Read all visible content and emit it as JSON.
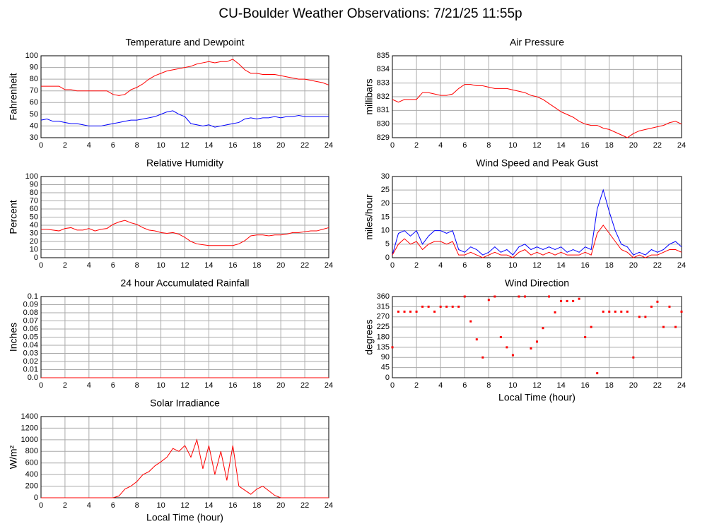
{
  "title": "CU-Boulder Weather Observations: 7/21/25 11:55p",
  "chart_data": [
    {
      "type": "line",
      "title": "Temperature and Dewpoint",
      "ylabel": "Fahrenheit",
      "x": [
        0,
        0.5,
        1,
        1.5,
        2,
        2.5,
        3,
        3.5,
        4,
        4.5,
        5,
        5.5,
        6,
        6.5,
        7,
        7.5,
        8,
        8.5,
        9,
        9.5,
        10,
        10.5,
        11,
        11.5,
        12,
        12.5,
        13,
        13.5,
        14,
        14.5,
        15,
        15.5,
        16,
        16.5,
        17,
        17.5,
        18,
        18.5,
        19,
        19.5,
        20,
        20.5,
        21,
        21.5,
        22,
        22.5,
        23,
        23.5,
        24
      ],
      "series": [
        {
          "color": "#ff0000",
          "values": [
            74,
            74,
            74,
            74,
            71,
            71,
            70,
            70,
            70,
            70,
            70,
            70,
            67,
            66,
            67,
            71,
            73,
            76,
            80,
            83,
            85,
            87,
            88,
            89,
            90,
            91,
            93,
            94,
            95,
            94,
            95,
            95,
            97,
            93,
            88,
            85,
            85,
            84,
            84,
            84,
            83,
            82,
            81,
            80,
            80,
            79,
            78,
            77,
            75
          ]
        },
        {
          "color": "#0000ff",
          "values": [
            45,
            46,
            44,
            44,
            43,
            42,
            42,
            41,
            40,
            40,
            40,
            41,
            42,
            43,
            44,
            45,
            45,
            46,
            47,
            48,
            50,
            52,
            53,
            50,
            48,
            42,
            41,
            40,
            41,
            39,
            40,
            41,
            42,
            43,
            46,
            47,
            46,
            47,
            47,
            48,
            47,
            48,
            48,
            49,
            48,
            48,
            48,
            48,
            48
          ]
        }
      ],
      "xlim": [
        0,
        24
      ],
      "xticks": [
        0,
        2,
        4,
        6,
        8,
        10,
        12,
        14,
        16,
        18,
        20,
        22,
        24
      ],
      "ylim": [
        30,
        100
      ],
      "yticks": [
        30,
        40,
        50,
        60,
        70,
        80,
        90,
        100
      ],
      "grid": true
    },
    {
      "type": "line",
      "title": "Air Pressure",
      "ylabel": "millibars",
      "x": [
        0,
        0.5,
        1,
        1.5,
        2,
        2.5,
        3,
        3.5,
        4,
        4.5,
        5,
        5.5,
        6,
        6.5,
        7,
        7.5,
        8,
        8.5,
        9,
        9.5,
        10,
        10.5,
        11,
        11.5,
        12,
        12.5,
        13,
        13.5,
        14,
        14.5,
        15,
        15.5,
        16,
        16.5,
        17,
        17.5,
        18,
        18.5,
        19,
        19.5,
        20,
        20.5,
        21,
        21.5,
        22,
        22.5,
        23,
        23.5,
        24
      ],
      "series": [
        {
          "color": "#ff0000",
          "values": [
            831.8,
            831.6,
            831.8,
            831.8,
            831.8,
            832.3,
            832.3,
            832.2,
            832.1,
            832.1,
            832.2,
            832.6,
            832.9,
            832.9,
            832.8,
            832.8,
            832.7,
            832.6,
            832.6,
            832.6,
            832.5,
            832.4,
            832.3,
            832.1,
            832.0,
            831.8,
            831.5,
            831.2,
            830.9,
            830.7,
            830.5,
            830.2,
            830.0,
            829.9,
            829.9,
            829.7,
            829.6,
            829.4,
            829.2,
            829.0,
            829.3,
            829.5,
            829.6,
            829.7,
            829.8,
            829.9,
            830.1,
            830.2,
            830.0
          ]
        }
      ],
      "xlim": [
        0,
        24
      ],
      "xticks": [
        0,
        2,
        4,
        6,
        8,
        10,
        12,
        14,
        16,
        18,
        20,
        22,
        24
      ],
      "ylim": [
        829,
        835
      ],
      "yticks": [
        829,
        830,
        831,
        832,
        833,
        834,
        835
      ],
      "grid": true
    },
    {
      "type": "line",
      "title": "Relative Humidity",
      "ylabel": "Percent",
      "x": [
        0,
        0.5,
        1,
        1.5,
        2,
        2.5,
        3,
        3.5,
        4,
        4.5,
        5,
        5.5,
        6,
        6.5,
        7,
        7.5,
        8,
        8.5,
        9,
        9.5,
        10,
        10.5,
        11,
        11.5,
        12,
        12.5,
        13,
        13.5,
        14,
        14.5,
        15,
        15.5,
        16,
        16.5,
        17,
        17.5,
        18,
        18.5,
        19,
        19.5,
        20,
        20.5,
        21,
        21.5,
        22,
        22.5,
        23,
        23.5,
        24
      ],
      "series": [
        {
          "color": "#ff0000",
          "values": [
            35,
            35,
            34,
            33,
            36,
            37,
            34,
            34,
            36,
            33,
            35,
            36,
            41,
            44,
            46,
            43,
            41,
            37,
            34,
            33,
            31,
            30,
            31,
            29,
            25,
            20,
            17,
            16,
            15,
            15,
            15,
            15,
            15,
            17,
            21,
            27,
            28,
            28,
            27,
            28,
            28,
            29,
            31,
            31,
            32,
            33,
            33,
            35,
            37
          ]
        }
      ],
      "xlim": [
        0,
        24
      ],
      "xticks": [
        0,
        2,
        4,
        6,
        8,
        10,
        12,
        14,
        16,
        18,
        20,
        22,
        24
      ],
      "ylim": [
        0,
        100
      ],
      "yticks": [
        0,
        10,
        20,
        30,
        40,
        50,
        60,
        70,
        80,
        90,
        100
      ],
      "grid": true
    },
    {
      "type": "line",
      "title": "Wind Speed and Peak Gust",
      "ylabel": "miles/hour",
      "x": [
        0,
        0.5,
        1,
        1.5,
        2,
        2.5,
        3,
        3.5,
        4,
        4.5,
        5,
        5.5,
        6,
        6.5,
        7,
        7.5,
        8,
        8.5,
        9,
        9.5,
        10,
        10.5,
        11,
        11.5,
        12,
        12.5,
        13,
        13.5,
        14,
        14.5,
        15,
        15.5,
        16,
        16.5,
        17,
        17.5,
        18,
        18.5,
        19,
        19.5,
        20,
        20.5,
        21,
        21.5,
        22,
        22.5,
        23,
        23.5,
        24
      ],
      "series": [
        {
          "color": "#0000ff",
          "values": [
            1,
            9,
            10,
            8,
            10,
            5,
            8,
            10,
            10,
            9,
            10,
            3,
            2,
            4,
            3,
            1,
            2,
            4,
            2,
            3,
            1,
            4,
            5,
            3,
            4,
            3,
            4,
            3,
            4,
            2,
            3,
            2,
            4,
            3,
            18,
            25,
            17,
            10,
            5,
            4,
            1,
            2,
            1,
            3,
            2,
            3,
            5,
            6,
            4
          ]
        },
        {
          "color": "#ff0000",
          "values": [
            1,
            5,
            7,
            5,
            6,
            3,
            5,
            6,
            6,
            5,
            6,
            1,
            1,
            2,
            1,
            0,
            1,
            2,
            1,
            1,
            0,
            2,
            3,
            1,
            2,
            1,
            2,
            1,
            2,
            1,
            1,
            1,
            2,
            1,
            9,
            12,
            9,
            6,
            3,
            2,
            0,
            1,
            0,
            1,
            1,
            2,
            3,
            3,
            2
          ]
        }
      ],
      "xlim": [
        0,
        24
      ],
      "xticks": [
        0,
        2,
        4,
        6,
        8,
        10,
        12,
        14,
        16,
        18,
        20,
        22,
        24
      ],
      "ylim": [
        0,
        30
      ],
      "yticks": [
        0,
        5,
        10,
        15,
        20,
        25,
        30
      ],
      "grid": true
    },
    {
      "type": "line",
      "title": "24 hour Accumulated Rainfall",
      "ylabel": "Inches",
      "x": [
        0,
        24
      ],
      "series": [
        {
          "color": "#ff0000",
          "values": [
            0,
            0
          ]
        }
      ],
      "xlim": [
        0,
        24
      ],
      "xticks": [
        0,
        2,
        4,
        6,
        8,
        10,
        12,
        14,
        16,
        18,
        20,
        22,
        24
      ],
      "ylim": [
        0,
        0.1
      ],
      "yticks": [
        {
          "value": 0,
          "label": "0.0"
        },
        0.01,
        0.02,
        0.03,
        0.04,
        0.05,
        0.06,
        0.07,
        0.08,
        0.09,
        0.1
      ],
      "grid": true
    },
    {
      "type": "scatter",
      "title": "Wind Direction",
      "ylabel": "degrees",
      "xlabel": "Local Time (hour)",
      "x": [
        0,
        0.5,
        1,
        1.5,
        2,
        2.5,
        3,
        3.5,
        4,
        4.5,
        5,
        5.5,
        6,
        6.5,
        7,
        7.5,
        8,
        8.5,
        9,
        9.5,
        10,
        10.5,
        11,
        11.5,
        12,
        12.5,
        13,
        13.5,
        14,
        14.5,
        15,
        15.5,
        16,
        16.5,
        17,
        17.5,
        18,
        18.5,
        19,
        19.5,
        20,
        20.5,
        21,
        21.5,
        22,
        22.5,
        23,
        23.5,
        24
      ],
      "series": [
        {
          "color": "#ff0000",
          "values": [
            135,
            293,
            293,
            293,
            293,
            315,
            315,
            293,
            315,
            315,
            315,
            315,
            360,
            250,
            170,
            90,
            345,
            360,
            180,
            135,
            100,
            360,
            360,
            130,
            160,
            220,
            360,
            290,
            340,
            340,
            340,
            350,
            180,
            225,
            20,
            293,
            293,
            293,
            293,
            293,
            90,
            270,
            270,
            315,
            337,
            225,
            315,
            225,
            293
          ]
        }
      ],
      "xlim": [
        0,
        24
      ],
      "xticks": [
        0,
        2,
        4,
        6,
        8,
        10,
        12,
        14,
        16,
        18,
        20,
        22,
        24
      ],
      "ylim": [
        0,
        360
      ],
      "yticks": [
        0,
        45,
        90,
        135,
        180,
        225,
        270,
        315,
        360
      ],
      "grid": true
    },
    {
      "type": "line",
      "title": "Solar Irradiance",
      "ylabel": "W/m²",
      "xlabel": "Local Time (hour)",
      "x": [
        0,
        0.5,
        1,
        1.5,
        2,
        2.5,
        3,
        3.5,
        4,
        4.5,
        5,
        5.5,
        6,
        6.5,
        7,
        7.5,
        8,
        8.5,
        9,
        9.5,
        10,
        10.5,
        11,
        11.5,
        12,
        12.5,
        13,
        13.5,
        14,
        14.5,
        15,
        15.5,
        16,
        16.5,
        17,
        17.5,
        18,
        18.5,
        19,
        19.5,
        20,
        20.5,
        21,
        21.5,
        22,
        22.5,
        23,
        23.5,
        24
      ],
      "series": [
        {
          "color": "#ff0000",
          "values": [
            0,
            0,
            0,
            0,
            0,
            0,
            0,
            0,
            0,
            0,
            0,
            0,
            0,
            30,
            150,
            200,
            280,
            400,
            450,
            550,
            620,
            700,
            850,
            800,
            900,
            700,
            1000,
            500,
            900,
            400,
            800,
            300,
            900,
            200,
            130,
            60,
            150,
            200,
            120,
            40,
            0,
            0,
            0,
            0,
            0,
            0,
            0,
            0,
            0
          ]
        }
      ],
      "xlim": [
        0,
        24
      ],
      "xticks": [
        0,
        2,
        4,
        6,
        8,
        10,
        12,
        14,
        16,
        18,
        20,
        22,
        24
      ],
      "ylim": [
        0,
        1400
      ],
      "yticks": [
        0,
        200,
        400,
        600,
        800,
        1000,
        1200,
        1400
      ],
      "grid": true
    }
  ]
}
